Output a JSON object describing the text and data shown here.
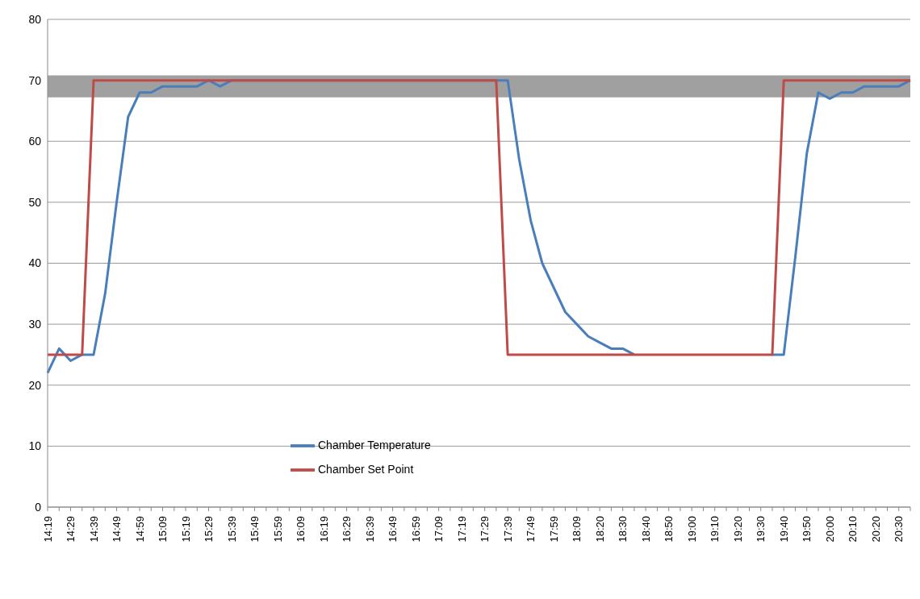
{
  "chart_data": {
    "type": "line",
    "categories": [
      "14:19",
      null,
      "14:29",
      null,
      "14:39",
      null,
      "14:49",
      null,
      "14:59",
      null,
      "15:09",
      null,
      "15:19",
      null,
      "15:29",
      null,
      "15:39",
      null,
      "15:49",
      null,
      "15:59",
      null,
      "16:09",
      null,
      "16:19",
      null,
      "16:29",
      null,
      "16:39",
      null,
      "16:49",
      null,
      "16:59",
      null,
      "17:09",
      null,
      "17:19",
      null,
      "17:29",
      null,
      "17:39",
      null,
      "17:49",
      null,
      "17:59",
      null,
      "18:09",
      null,
      "18:20",
      null,
      "18:30",
      null,
      "18:40",
      null,
      "18:50",
      null,
      "19:00",
      null,
      "19:10",
      null,
      "19:20",
      null,
      "19:30",
      null,
      "19:40",
      null,
      "19:50",
      null,
      "20:00",
      null,
      "20:10",
      null,
      "20:20",
      null,
      "20:30",
      null
    ],
    "series": [
      {
        "name": "Chamber Temperature",
        "color": "#4a7ebb",
        "values": [
          22,
          26,
          24,
          25,
          25,
          35,
          50,
          64,
          68,
          68,
          69,
          69,
          69,
          69,
          70,
          69,
          70,
          70,
          70,
          70,
          70,
          70,
          70,
          70,
          70,
          70,
          70,
          70,
          70,
          70,
          70,
          70,
          70,
          70,
          70,
          70,
          70,
          70,
          70,
          70,
          70,
          57,
          47,
          40,
          36,
          32,
          30,
          28,
          27,
          26,
          26,
          25,
          null,
          null,
          null,
          null,
          null,
          null,
          null,
          null,
          null,
          null,
          null,
          25,
          25,
          41,
          58,
          68,
          67,
          68,
          68,
          69,
          69,
          69,
          69,
          70
        ]
      },
      {
        "name": "Chamber Set Point",
        "color": "#be4b48",
        "values": [
          25,
          25,
          25,
          25,
          70,
          70,
          70,
          70,
          70,
          70,
          70,
          70,
          70,
          70,
          70,
          70,
          70,
          70,
          70,
          70,
          70,
          70,
          70,
          70,
          70,
          70,
          70,
          70,
          70,
          70,
          70,
          70,
          70,
          70,
          70,
          70,
          70,
          70,
          70,
          70,
          25,
          25,
          25,
          25,
          25,
          25,
          25,
          25,
          25,
          25,
          25,
          25,
          25,
          25,
          25,
          25,
          25,
          25,
          25,
          25,
          25,
          25,
          25,
          25,
          70,
          70,
          70,
          70,
          70,
          70,
          70,
          70,
          70,
          70,
          70,
          70
        ]
      }
    ],
    "ylim": [
      0,
      80
    ],
    "yticks": [
      0,
      10,
      20,
      30,
      40,
      50,
      60,
      70,
      80
    ],
    "grid": "y",
    "legend": "bottom left",
    "line_style": "solid",
    "marker": "none",
    "bands": [
      {
        "axis": "y",
        "from": 67.2,
        "to": 70.8,
        "color": "#a0a0a0"
      }
    ]
  }
}
